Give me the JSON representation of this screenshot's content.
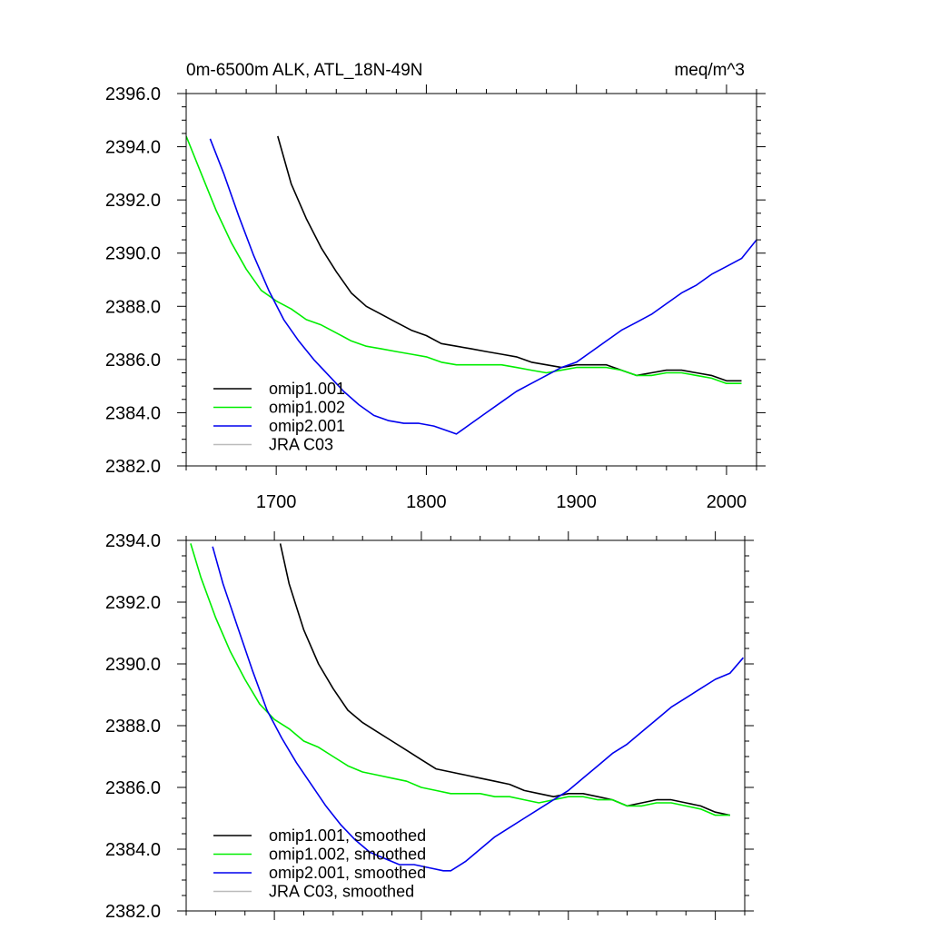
{
  "chart_data": [
    {
      "type": "line",
      "title": "0m-6500m ALK, ATL_18N-49N",
      "units": "meq/m^3",
      "xlim": [
        1640,
        2020
      ],
      "ylim": [
        2382,
        2396
      ],
      "xticks": [
        1700,
        1800,
        1900,
        2000
      ],
      "xtick_labels": [
        "1700",
        "1800",
        "1900",
        "2000"
      ],
      "yticks": [
        2382,
        2384,
        2386,
        2388,
        2390,
        2392,
        2394,
        2396
      ],
      "ytick_labels": [
        "2382.0",
        "2384.0",
        "2386.0",
        "2388.0",
        "2390.0",
        "2392.0",
        "2394.0",
        "2396.0"
      ],
      "legend_position": "bottom-left",
      "series": [
        {
          "name": "omip1.001",
          "color": "#000000",
          "x": [
            1701,
            1710,
            1720,
            1730,
            1740,
            1750,
            1760,
            1770,
            1780,
            1790,
            1800,
            1810,
            1820,
            1830,
            1840,
            1850,
            1860,
            1870,
            1880,
            1890,
            1900,
            1910,
            1920,
            1930,
            1940,
            1950,
            1960,
            1970,
            1980,
            1990,
            2000,
            2010
          ],
          "y": [
            2394.4,
            2392.6,
            2391.3,
            2390.2,
            2389.3,
            2388.5,
            2388.0,
            2387.7,
            2387.4,
            2387.1,
            2386.9,
            2386.6,
            2386.5,
            2386.4,
            2386.3,
            2386.2,
            2386.1,
            2385.9,
            2385.8,
            2385.7,
            2385.8,
            2385.8,
            2385.8,
            2385.6,
            2385.4,
            2385.5,
            2385.6,
            2385.6,
            2385.5,
            2385.4,
            2385.2,
            2385.2
          ]
        },
        {
          "name": "omip1.002",
          "color": "#00ee00",
          "x": [
            1640,
            1650,
            1660,
            1670,
            1680,
            1690,
            1700,
            1710,
            1720,
            1730,
            1740,
            1750,
            1760,
            1770,
            1780,
            1790,
            1800,
            1810,
            1820,
            1830,
            1840,
            1850,
            1860,
            1870,
            1880,
            1890,
            1900,
            1910,
            1920,
            1930,
            1940,
            1950,
            1960,
            1970,
            1980,
            1990,
            2000,
            2010
          ],
          "y": [
            2394.4,
            2393.0,
            2391.6,
            2390.4,
            2389.4,
            2388.6,
            2388.2,
            2387.9,
            2387.5,
            2387.3,
            2387.0,
            2386.7,
            2386.5,
            2386.4,
            2386.3,
            2386.2,
            2386.1,
            2385.9,
            2385.8,
            2385.8,
            2385.8,
            2385.8,
            2385.7,
            2385.6,
            2385.5,
            2385.6,
            2385.7,
            2385.7,
            2385.7,
            2385.6,
            2385.4,
            2385.4,
            2385.5,
            2385.5,
            2385.4,
            2385.3,
            2385.1,
            2385.1
          ]
        },
        {
          "name": "omip2.001",
          "color": "#0000ee",
          "x": [
            1656,
            1665,
            1675,
            1685,
            1695,
            1705,
            1715,
            1725,
            1735,
            1745,
            1755,
            1765,
            1775,
            1785,
            1795,
            1805,
            1815,
            1820,
            1830,
            1840,
            1850,
            1860,
            1870,
            1880,
            1890,
            1900,
            1910,
            1920,
            1930,
            1940,
            1950,
            1960,
            1970,
            1980,
            1990,
            2000,
            2010,
            2020
          ],
          "y": [
            2394.3,
            2393.0,
            2391.4,
            2389.9,
            2388.6,
            2387.5,
            2386.7,
            2386.0,
            2385.4,
            2384.8,
            2384.3,
            2383.9,
            2383.7,
            2383.6,
            2383.6,
            2383.5,
            2383.3,
            2383.2,
            2383.6,
            2384.0,
            2384.4,
            2384.8,
            2385.1,
            2385.4,
            2385.7,
            2385.9,
            2386.3,
            2386.7,
            2387.1,
            2387.4,
            2387.7,
            2388.1,
            2388.5,
            2388.8,
            2389.2,
            2389.5,
            2389.8,
            2390.5
          ]
        },
        {
          "name": "JRA C03",
          "color": "#bbbbbb",
          "x": [],
          "y": []
        }
      ]
    },
    {
      "type": "line",
      "title": "",
      "xlim": [
        1640,
        2020
      ],
      "ylim": [
        2382,
        2394
      ],
      "xticks": [
        1700,
        1800,
        1900,
        2000
      ],
      "yticks": [
        2382,
        2384,
        2386,
        2388,
        2390,
        2392,
        2394
      ],
      "ytick_labels": [
        "2382.0",
        "2384.0",
        "2386.0",
        "2388.0",
        "2390.0",
        "2392.0",
        "2394.0"
      ],
      "legend_position": "bottom-left",
      "series": [
        {
          "name": "omip1.001, smoothed",
          "color": "#000000",
          "x": [
            1704,
            1710,
            1720,
            1730,
            1740,
            1750,
            1760,
            1770,
            1780,
            1790,
            1800,
            1810,
            1820,
            1830,
            1840,
            1850,
            1860,
            1870,
            1880,
            1890,
            1900,
            1910,
            1920,
            1930,
            1940,
            1950,
            1960,
            1970,
            1980,
            1990,
            2000,
            2010
          ],
          "y": [
            2393.9,
            2392.6,
            2391.1,
            2390.0,
            2389.2,
            2388.5,
            2388.1,
            2387.8,
            2387.5,
            2387.2,
            2386.9,
            2386.6,
            2386.5,
            2386.4,
            2386.3,
            2386.2,
            2386.1,
            2385.9,
            2385.8,
            2385.7,
            2385.8,
            2385.8,
            2385.7,
            2385.6,
            2385.4,
            2385.5,
            2385.6,
            2385.6,
            2385.5,
            2385.4,
            2385.2,
            2385.1
          ]
        },
        {
          "name": "omip1.002, smoothed",
          "color": "#00ee00",
          "x": [
            1643,
            1650,
            1660,
            1670,
            1680,
            1690,
            1700,
            1710,
            1720,
            1730,
            1740,
            1750,
            1760,
            1770,
            1780,
            1790,
            1800,
            1810,
            1820,
            1830,
            1840,
            1850,
            1860,
            1870,
            1880,
            1890,
            1900,
            1910,
            1920,
            1930,
            1940,
            1950,
            1960,
            1970,
            1980,
            1990,
            2000,
            2010
          ],
          "y": [
            2393.9,
            2392.8,
            2391.5,
            2390.4,
            2389.5,
            2388.7,
            2388.2,
            2387.9,
            2387.5,
            2387.3,
            2387.0,
            2386.7,
            2386.5,
            2386.4,
            2386.3,
            2386.2,
            2386.0,
            2385.9,
            2385.8,
            2385.8,
            2385.8,
            2385.7,
            2385.7,
            2385.6,
            2385.5,
            2385.6,
            2385.7,
            2385.7,
            2385.6,
            2385.6,
            2385.4,
            2385.4,
            2385.5,
            2385.5,
            2385.4,
            2385.3,
            2385.1,
            2385.1
          ]
        },
        {
          "name": "omip2.001, smoothed",
          "color": "#0000ee",
          "x": [
            1658,
            1665,
            1675,
            1685,
            1695,
            1705,
            1715,
            1725,
            1735,
            1745,
            1755,
            1765,
            1775,
            1785,
            1795,
            1805,
            1815,
            1820,
            1830,
            1840,
            1850,
            1860,
            1870,
            1880,
            1890,
            1900,
            1910,
            1920,
            1930,
            1940,
            1950,
            1960,
            1970,
            1980,
            1990,
            2000,
            2010,
            2019
          ],
          "y": [
            2393.8,
            2392.6,
            2391.2,
            2389.8,
            2388.5,
            2387.6,
            2386.8,
            2386.1,
            2385.4,
            2384.8,
            2384.3,
            2383.9,
            2383.7,
            2383.5,
            2383.5,
            2383.4,
            2383.3,
            2383.3,
            2383.6,
            2384.0,
            2384.4,
            2384.7,
            2385.0,
            2385.3,
            2385.6,
            2385.9,
            2386.3,
            2386.7,
            2387.1,
            2387.4,
            2387.8,
            2388.2,
            2388.6,
            2388.9,
            2389.2,
            2389.5,
            2389.7,
            2390.2
          ]
        },
        {
          "name": "JRA C03, smoothed",
          "color": "#bbbbbb",
          "x": [],
          "y": []
        }
      ]
    }
  ]
}
